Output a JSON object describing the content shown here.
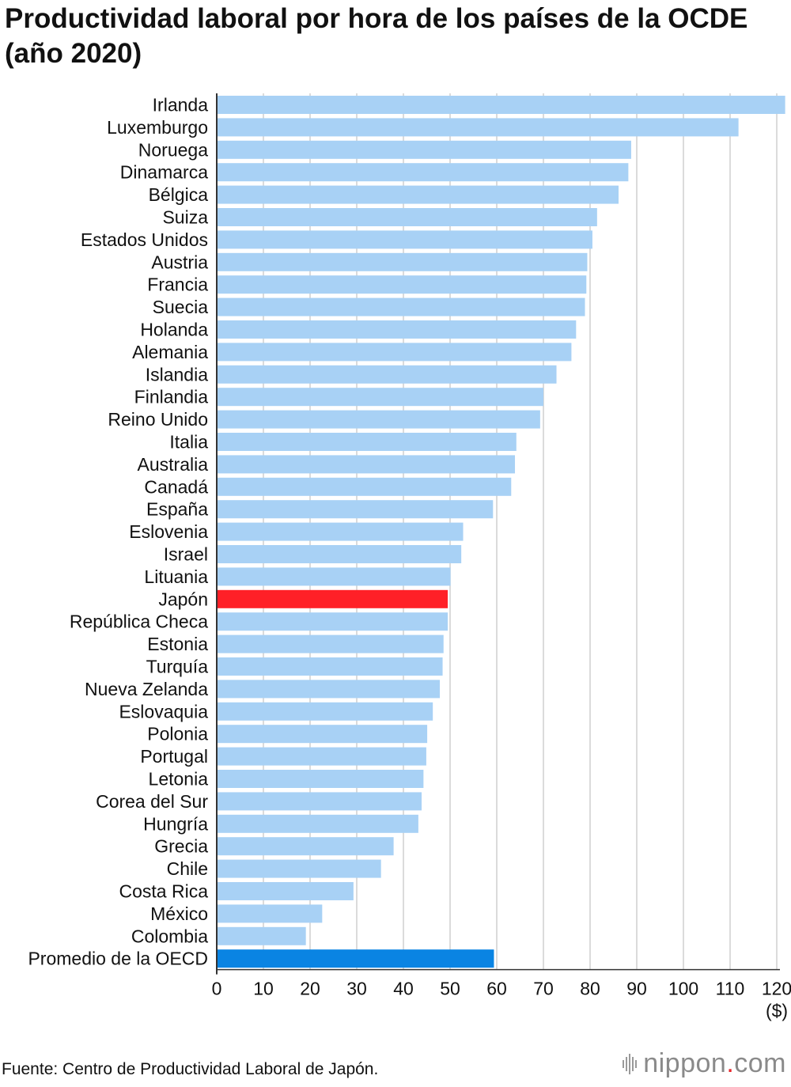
{
  "title": "Productividad laboral por hora de los países de la OCDE (año 2020)",
  "source": "Fuente: Centro de Productividad Laboral de Japón.",
  "logo": {
    "name": "nippon",
    "dot": ".",
    "suffix": "com"
  },
  "chart_data": {
    "type": "bar",
    "orientation": "horizontal",
    "title": "Productividad laboral por hora de los países de la OCDE (año 2020)",
    "unit_label": "($)",
    "xlim": [
      0,
      120
    ],
    "xticks": [
      0,
      10,
      20,
      30,
      40,
      50,
      60,
      70,
      80,
      90,
      100,
      110,
      120
    ],
    "grid": true,
    "colors": {
      "default": "#a8d1f5",
      "highlight": "#ff2027",
      "average": "#0a84e3",
      "grid": "#cfcfcf",
      "axis": "#333333"
    },
    "categories": [
      "Irlanda",
      "Luxemburgo",
      "Noruega",
      "Dinamarca",
      "Bélgica",
      "Suiza",
      "Estados Unidos",
      "Austria",
      "Francia",
      "Suecia",
      "Holanda",
      "Alemania",
      "Islandia",
      "Finlandia",
      "Reino Unido",
      "Italia",
      "Australia",
      "Canadá",
      "España",
      "Eslovenia",
      "Israel",
      "Lituania",
      "Japón",
      "República Checa",
      "Estonia",
      "Turquía",
      "Nueva Zelanda",
      "Eslovaquia",
      "Polonia",
      "Portugal",
      "Letonia",
      "Corea del Sur",
      "Hungría",
      "Grecia",
      "Chile",
      "Costa Rica",
      "México",
      "Colombia",
      "Promedio de la OECD"
    ],
    "values": [
      121.8,
      111.8,
      88.8,
      88.2,
      86.1,
      81.5,
      80.5,
      79.4,
      79.2,
      78.9,
      77.0,
      76.0,
      72.8,
      70.0,
      69.3,
      64.2,
      63.9,
      63.1,
      59.2,
      52.8,
      52.4,
      50.1,
      49.5,
      49.5,
      48.6,
      48.4,
      47.8,
      46.3,
      45.1,
      44.9,
      44.3,
      43.9,
      43.2,
      37.9,
      35.2,
      29.3,
      22.6,
      19.1,
      59.4
    ],
    "highlight": [
      "Japón"
    ],
    "average": [
      "Promedio de la OECD"
    ]
  }
}
